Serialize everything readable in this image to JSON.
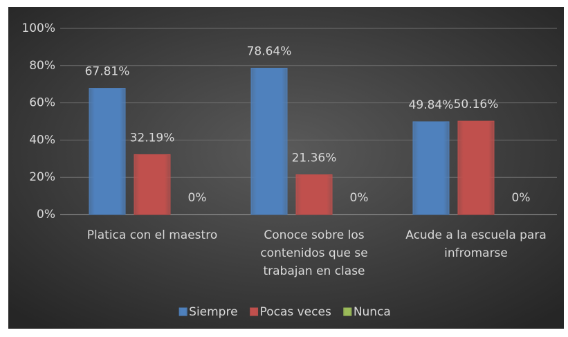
{
  "chart_data": {
    "type": "bar",
    "categories": [
      "Platica con el maestro",
      "Conoce sobre los contenidos que se trabajan en clase",
      "Acude a la escuela para infromarse"
    ],
    "series": [
      {
        "name": "Siempre",
        "color": "#4f81bd",
        "values": [
          67.81,
          78.64,
          49.84
        ],
        "value_labels": [
          "67.81%",
          "78.64%",
          "49.84%"
        ]
      },
      {
        "name": "Pocas veces",
        "color": "#c0504d",
        "values": [
          32.19,
          21.36,
          50.16
        ],
        "value_labels": [
          "32.19%",
          "21.36%",
          "50.16%"
        ]
      },
      {
        "name": "Nunca",
        "color": "#9bbb59",
        "values": [
          0,
          0,
          0
        ],
        "value_labels": [
          "0%",
          "0%",
          "0%"
        ]
      }
    ],
    "ylim": [
      0,
      100
    ],
    "yticks": [
      {
        "value": 0,
        "label": "0%"
      },
      {
        "value": 20,
        "label": "20%"
      },
      {
        "value": 40,
        "label": "40%"
      },
      {
        "value": 60,
        "label": "60%"
      },
      {
        "value": 80,
        "label": "80%"
      },
      {
        "value": 100,
        "label": "100%"
      }
    ],
    "grid": true,
    "legend": "bottom"
  }
}
